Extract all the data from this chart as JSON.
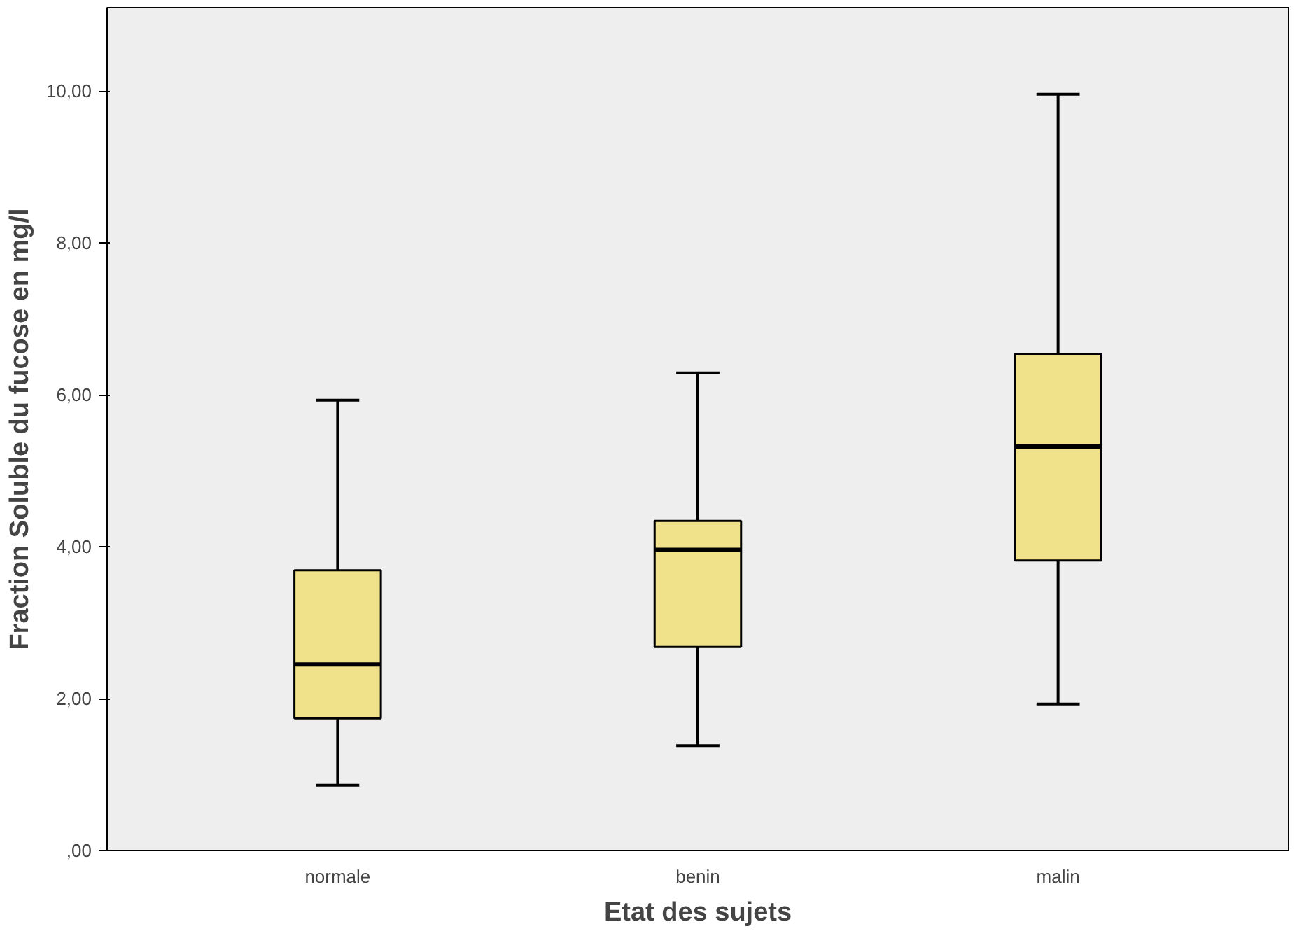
{
  "chart_data": {
    "type": "box",
    "xlabel": "Etat des sujets",
    "ylabel": "Fraction Soluble du fucose en mg/l",
    "categories": [
      "normale",
      "benin",
      "malin"
    ],
    "color": "#efe28a",
    "boxes": [
      {
        "low": 0.86,
        "q1": 1.74,
        "median": 2.45,
        "q3": 3.69,
        "high": 5.93
      },
      {
        "low": 1.38,
        "q1": 2.68,
        "median": 3.96,
        "q3": 4.34,
        "high": 6.29
      },
      {
        "low": 1.93,
        "q1": 3.82,
        "median": 5.32,
        "q3": 6.54,
        "high": 9.96
      }
    ],
    "ylim": [
      0,
      11.1
    ],
    "yticks": [
      {
        "value": 0,
        "label": ",00"
      },
      {
        "value": 2,
        "label": "2,00"
      },
      {
        "value": 4,
        "label": "4,00"
      },
      {
        "value": 6,
        "label": "6,00"
      },
      {
        "value": 8,
        "label": "8,00"
      },
      {
        "value": 10,
        "label": "10,00"
      }
    ]
  }
}
